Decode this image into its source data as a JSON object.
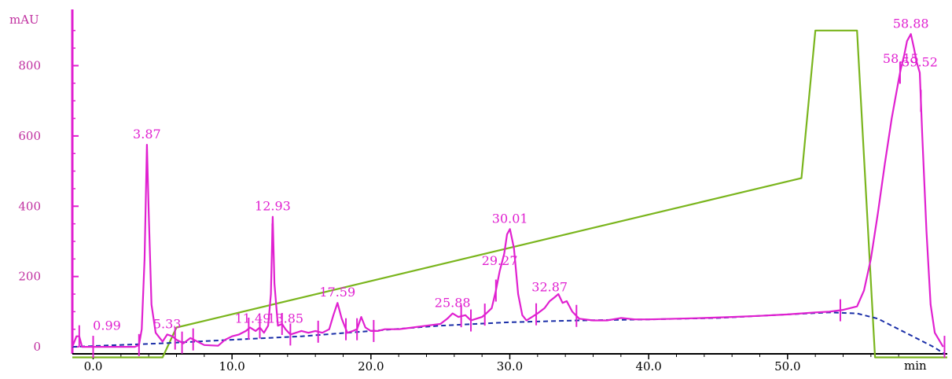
{
  "chart_data": {
    "type": "line",
    "title": "",
    "ylabel": "mAU",
    "xlabel": "min",
    "xlim": [
      -1.5,
      61.5
    ],
    "ylim": [
      -20,
      960
    ],
    "x_ticks": [
      {
        "value": 0,
        "label": "0.0"
      },
      {
        "value": 10,
        "label": "10.0"
      },
      {
        "value": 20,
        "label": "20.0"
      },
      {
        "value": 30,
        "label": "30.0"
      },
      {
        "value": 40,
        "label": "40.0"
      },
      {
        "value": 50,
        "label": "50.0"
      }
    ],
    "y_ticks": [
      {
        "value": 0,
        "label": "0"
      },
      {
        "value": 200,
        "label": "200"
      },
      {
        "value": 400,
        "label": "400"
      },
      {
        "value": 600,
        "label": "600"
      },
      {
        "value": 800,
        "label": "800"
      }
    ],
    "grid": false,
    "colors": {
      "axis": "#e020d0",
      "signal": "#e020d0",
      "gradient": "#7ab51d",
      "baseline": "#1a2ea8",
      "tick_label": "#c030a0"
    },
    "series": [
      {
        "style": "solid",
        "color": "#e020d0",
        "x": [
          -1.5,
          -1.2,
          -1.0,
          -0.8,
          0.0,
          0.5,
          1.5,
          2.0,
          3.0,
          3.3,
          3.5,
          3.7,
          3.87,
          4.0,
          4.2,
          4.5,
          5.0,
          5.33,
          5.7,
          6.0,
          6.5,
          7.0,
          7.5,
          8.0,
          9.0,
          9.5,
          10.0,
          10.5,
          11.0,
          11.3,
          11.49,
          11.7,
          12.0,
          12.3,
          12.6,
          12.8,
          12.93,
          13.05,
          13.3,
          13.6,
          13.85,
          14.2,
          14.6,
          15.0,
          15.5,
          16.0,
          16.5,
          17.0,
          17.3,
          17.59,
          17.9,
          18.3,
          18.7,
          19.0,
          19.3,
          19.6,
          20.0,
          20.5,
          21.0,
          22.0,
          23.0,
          24.0,
          25.0,
          25.5,
          25.88,
          26.3,
          26.8,
          27.2,
          27.6,
          28.0,
          28.3,
          28.7,
          29.0,
          29.27,
          29.6,
          29.8,
          30.01,
          30.3,
          30.6,
          30.9,
          31.2,
          31.6,
          32.0,
          32.5,
          32.87,
          33.2,
          33.5,
          33.8,
          34.1,
          34.5,
          35.0,
          36.0,
          37.0,
          38.0,
          39.0,
          40.0,
          42.0,
          44.0,
          46.0,
          48.0,
          50.0,
          52.0,
          53.0,
          54.0,
          55.0,
          55.5,
          56.0,
          56.5,
          57.0,
          57.5,
          58.0,
          58.15,
          58.4,
          58.6,
          58.88,
          59.1,
          59.3,
          59.52,
          59.7,
          60.0,
          60.3,
          60.6,
          60.9,
          61.2
        ],
        "y": [
          0,
          30,
          30,
          0,
          0,
          0,
          0,
          0,
          0,
          5,
          50,
          250,
          575,
          380,
          120,
          40,
          15,
          35,
          30,
          20,
          10,
          25,
          15,
          5,
          3,
          20,
          30,
          35,
          45,
          55,
          50,
          45,
          55,
          40,
          60,
          150,
          370,
          180,
          60,
          65,
          50,
          35,
          40,
          45,
          40,
          45,
          40,
          50,
          90,
          125,
          80,
          40,
          45,
          50,
          85,
          55,
          45,
          45,
          50,
          50,
          55,
          60,
          65,
          80,
          95,
          85,
          90,
          75,
          80,
          85,
          95,
          110,
          160,
          215,
          265,
          320,
          335,
          280,
          150,
          90,
          75,
          85,
          95,
          110,
          130,
          140,
          150,
          125,
          130,
          100,
          80,
          75,
          75,
          82,
          78,
          78,
          80,
          82,
          85,
          88,
          92,
          98,
          100,
          105,
          115,
          160,
          250,
          380,
          520,
          650,
          760,
          790,
          830,
          870,
          890,
          850,
          810,
          780,
          600,
          330,
          120,
          40,
          20,
          0
        ]
      },
      {
        "style": "solid",
        "color": "#7ab51d",
        "x": [
          -1.5,
          5.0,
          6.0,
          51.0,
          52.0,
          55.0,
          56.3,
          61.5
        ],
        "y": [
          -30,
          -30,
          55,
          480,
          900,
          900,
          -30,
          -30
        ]
      },
      {
        "style": "dashed",
        "color": "#1a2ea8",
        "x": [
          -1.5,
          5.0,
          10.0,
          15.0,
          20.0,
          25.0,
          30.0,
          35.0,
          40.0,
          45.0,
          50.0,
          53.0,
          55.0,
          56.5,
          58.0,
          59.5,
          60.5,
          61.3
        ],
        "y": [
          0,
          10,
          20,
          30,
          45,
          60,
          70,
          75,
          78,
          82,
          92,
          98,
          95,
          80,
          50,
          20,
          0,
          -20
        ]
      }
    ],
    "peak_labels": [
      {
        "label": "0.99",
        "x": 0.99,
        "y": 30
      },
      {
        "label": "3.87",
        "x": 3.87,
        "y": 575
      },
      {
        "label": "5.33",
        "x": 5.33,
        "y": 35
      },
      {
        "label": "11.49",
        "x": 11.49,
        "y": 50
      },
      {
        "label": "12.93",
        "x": 12.93,
        "y": 370
      },
      {
        "label": "13.85",
        "x": 13.85,
        "y": 50
      },
      {
        "label": "17.59",
        "x": 17.59,
        "y": 125
      },
      {
        "label": "25.88",
        "x": 25.88,
        "y": 95
      },
      {
        "label": "29.27",
        "x": 29.27,
        "y": 215
      },
      {
        "label": "30.01",
        "x": 30.01,
        "y": 335
      },
      {
        "label": "32.87",
        "x": 32.87,
        "y": 140
      },
      {
        "label": "58.15",
        "x": 58.15,
        "y": 790
      },
      {
        "label": "58.88",
        "x": 58.88,
        "y": 890
      },
      {
        "label": "59.52",
        "x": 59.52,
        "y": 780
      }
    ],
    "integration_markers_x": [
      -1.0,
      0.0,
      3.3,
      5.9,
      6.4,
      7.2,
      11.2,
      12.0,
      12.9,
      13.6,
      14.2,
      16.2,
      18.2,
      19.0,
      20.2,
      26.5,
      27.2,
      28.2,
      29.0,
      31.9,
      34.8,
      53.8,
      58.1,
      59.6,
      61.3
    ]
  }
}
